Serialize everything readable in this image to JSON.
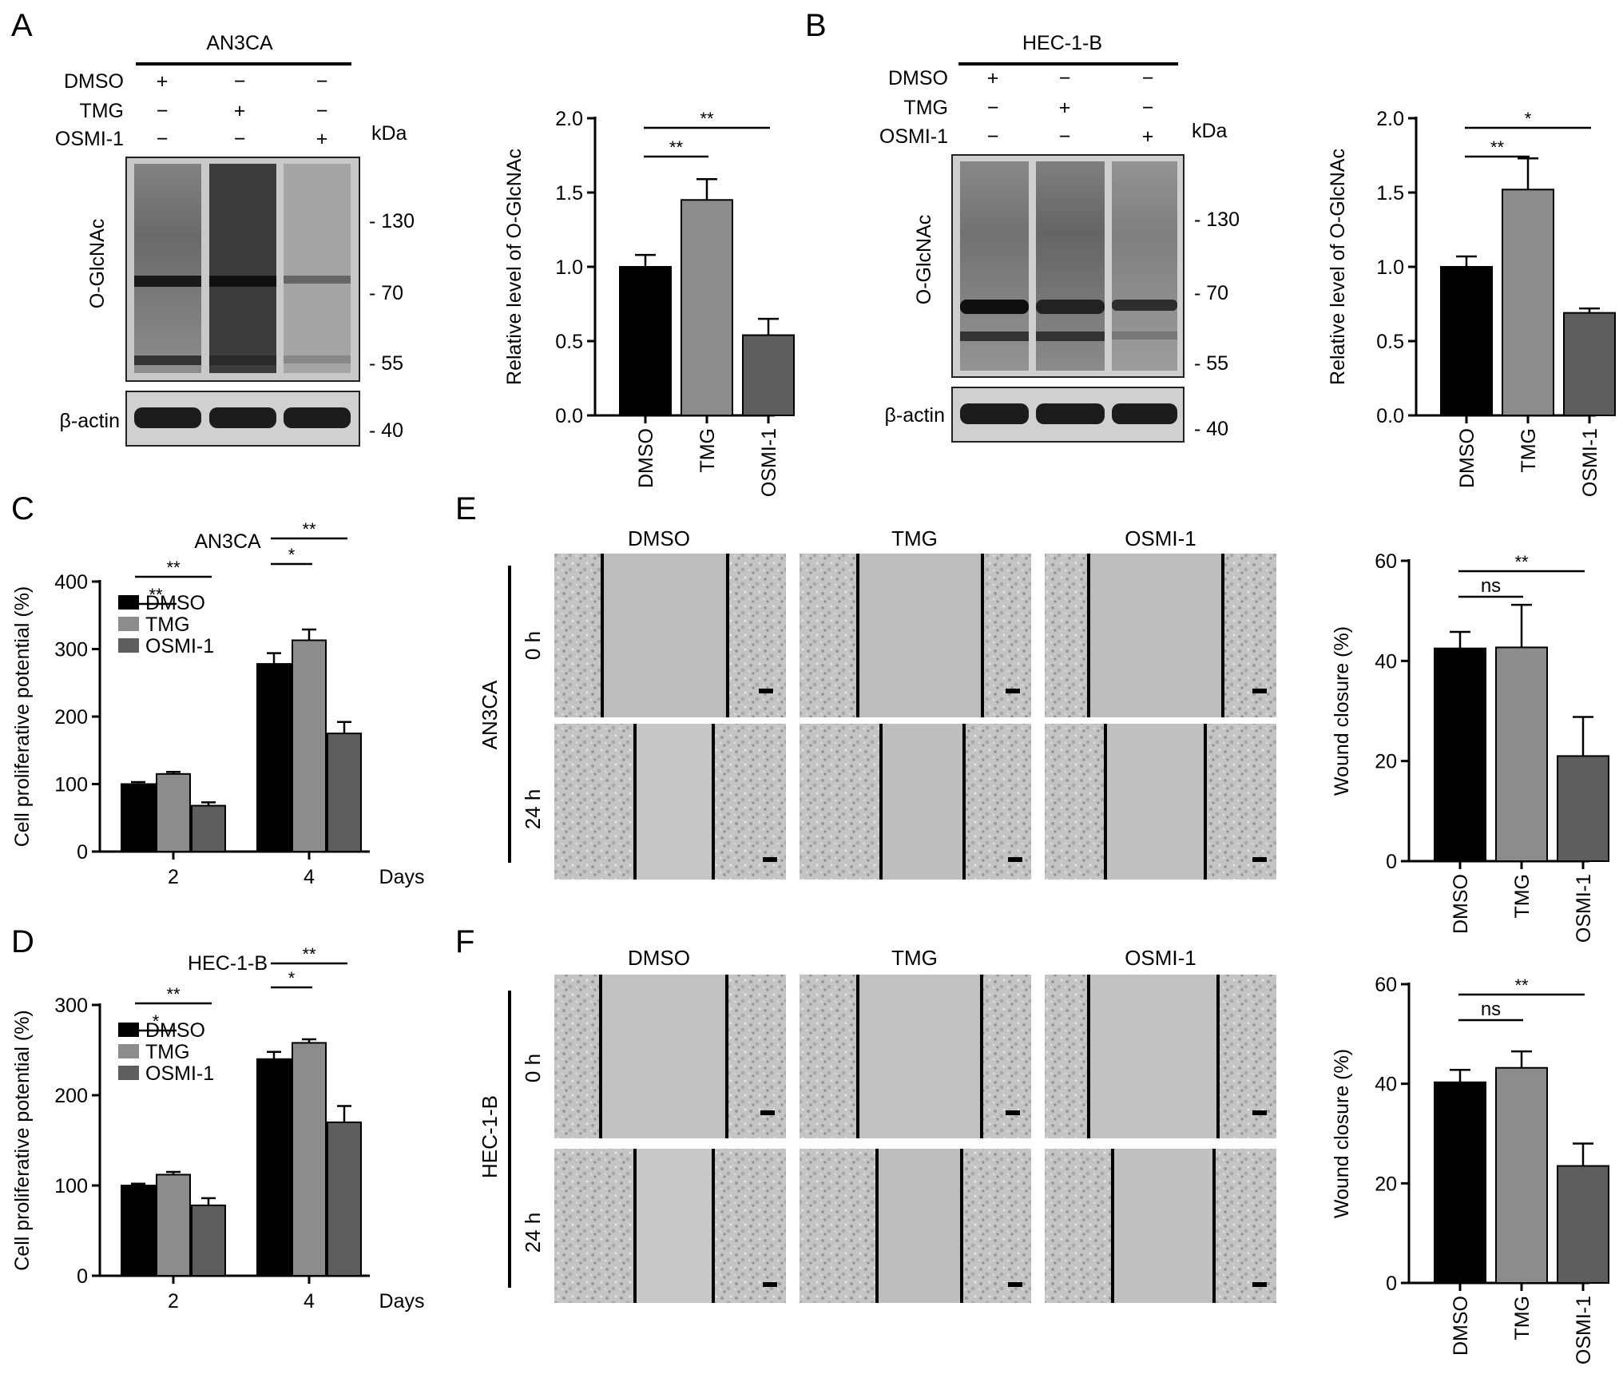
{
  "panels": {
    "A": {
      "letter": "A",
      "cell_line": "AN3CA",
      "conditions": [
        {
          "label": "DMSO",
          "marks": [
            "+",
            "−",
            "−"
          ]
        },
        {
          "label": "TMG",
          "marks": [
            "−",
            "+",
            "−"
          ]
        },
        {
          "label": "OSMI-1",
          "marks": [
            "−",
            "−",
            "+"
          ]
        }
      ],
      "kda_label": "kDa",
      "blot_label": "O-GlcNAc",
      "actin_label": "β-actin",
      "markers": [
        "- 130",
        "- 70",
        "- 55",
        "- 40"
      ]
    },
    "B": {
      "letter": "B",
      "cell_line": "HEC-1-B",
      "conditions": [
        {
          "label": "DMSO",
          "marks": [
            "+",
            "−",
            "−"
          ]
        },
        {
          "label": "TMG",
          "marks": [
            "−",
            "+",
            "−"
          ]
        },
        {
          "label": "OSMI-1",
          "marks": [
            "−",
            "−",
            "+"
          ]
        }
      ],
      "kda_label": "kDa",
      "blot_label": "O-GlcNAc",
      "actin_label": "β-actin",
      "markers": [
        "- 130",
        "- 70",
        "- 55",
        "- 40"
      ]
    },
    "C": {
      "letter": "C"
    },
    "D": {
      "letter": "D"
    },
    "E": {
      "letter": "E",
      "cell_line": "AN3CA",
      "columns": [
        "DMSO",
        "TMG",
        "OSMI-1"
      ],
      "rows": [
        "0 h",
        "24 h"
      ]
    },
    "F": {
      "letter": "F",
      "cell_line": "HEC-1-B",
      "columns": [
        "DMSO",
        "TMG",
        "OSMI-1"
      ],
      "rows": [
        "0 h",
        "24 h"
      ]
    }
  },
  "colors": {
    "dmso": "#000000",
    "tmg": "#8c8c8c",
    "osmi": "#5e5e5e"
  },
  "chart_data": [
    {
      "id": "A-bar",
      "type": "bar",
      "categories": [
        "DMSO",
        "TMG",
        "OSMI-1"
      ],
      "values": [
        1.0,
        1.45,
        0.54
      ],
      "errors": [
        0.08,
        0.14,
        0.11
      ],
      "ylabel": "Relative level of O-GlcNAc",
      "ylim": [
        0,
        2.0
      ],
      "yticks": [
        "0.0",
        "0.5",
        "1.0",
        "1.5",
        "2.0"
      ],
      "significance": [
        {
          "from": 0,
          "to": 1,
          "label": "**"
        },
        {
          "from": 0,
          "to": 2,
          "label": "**"
        }
      ]
    },
    {
      "id": "B-bar",
      "type": "bar",
      "categories": [
        "DMSO",
        "TMG",
        "OSMI-1"
      ],
      "values": [
        1.0,
        1.52,
        0.69
      ],
      "errors": [
        0.07,
        0.21,
        0.03
      ],
      "ylabel": "Relative level of O-GlcNAc",
      "ylim": [
        0,
        2.0
      ],
      "yticks": [
        "0.0",
        "0.5",
        "1.0",
        "1.5",
        "2.0"
      ],
      "significance": [
        {
          "from": 0,
          "to": 1,
          "label": "**"
        },
        {
          "from": 0,
          "to": 2,
          "label": "*"
        }
      ]
    },
    {
      "id": "C-bar",
      "type": "bar",
      "title": "AN3CA",
      "categories": [
        "2",
        "4"
      ],
      "xlabel": "Days",
      "ylabel": "Cell proliferative potential (%)",
      "ylim": [
        0,
        400
      ],
      "yticks": [
        "0",
        "100",
        "200",
        "300",
        "400"
      ],
      "series": [
        {
          "name": "DMSO",
          "values": [
            100,
            278
          ],
          "errors": [
            3,
            16
          ]
        },
        {
          "name": "TMG",
          "values": [
            115,
            313
          ],
          "errors": [
            3,
            16
          ]
        },
        {
          "name": "OSMI-1",
          "values": [
            68,
            175
          ],
          "errors": [
            5,
            17
          ]
        }
      ],
      "significance": [
        {
          "group": 0,
          "from": 0,
          "to": 1,
          "label": "**"
        },
        {
          "group": 0,
          "from": 0,
          "to": 2,
          "label": "**"
        },
        {
          "group": 1,
          "from": 0,
          "to": 1,
          "label": "*"
        },
        {
          "group": 1,
          "from": 0,
          "to": 2,
          "label": "**"
        }
      ]
    },
    {
      "id": "D-bar",
      "type": "bar",
      "title": "HEC-1-B",
      "categories": [
        "2",
        "4"
      ],
      "xlabel": "Days",
      "ylabel": "Cell proliferative potential (%)",
      "ylim": [
        0,
        300
      ],
      "yticks": [
        "0",
        "100",
        "200",
        "300"
      ],
      "series": [
        {
          "name": "DMSO",
          "values": [
            100,
            240
          ],
          "errors": [
            2,
            8
          ]
        },
        {
          "name": "TMG",
          "values": [
            112,
            258
          ],
          "errors": [
            3,
            4
          ]
        },
        {
          "name": "OSMI-1",
          "values": [
            78,
            170
          ],
          "errors": [
            8,
            18
          ]
        }
      ],
      "significance": [
        {
          "group": 0,
          "from": 0,
          "to": 1,
          "label": "*"
        },
        {
          "group": 0,
          "from": 0,
          "to": 2,
          "label": "**"
        },
        {
          "group": 1,
          "from": 0,
          "to": 1,
          "label": "*"
        },
        {
          "group": 1,
          "from": 0,
          "to": 2,
          "label": "**"
        }
      ]
    },
    {
      "id": "E-bar",
      "type": "bar",
      "categories": [
        "DMSO",
        "TMG",
        "OSMI-1"
      ],
      "values": [
        42.5,
        42.7,
        21.0
      ],
      "errors": [
        3.3,
        8.5,
        7.8
      ],
      "ylabel": "Wound closure (%)",
      "ylim": [
        0,
        60
      ],
      "yticks": [
        "0",
        "20",
        "40",
        "60"
      ],
      "significance": [
        {
          "from": 0,
          "to": 1,
          "label": "ns"
        },
        {
          "from": 0,
          "to": 2,
          "label": "**"
        }
      ]
    },
    {
      "id": "F-bar",
      "type": "bar",
      "categories": [
        "DMSO",
        "TMG",
        "OSMI-1"
      ],
      "values": [
        40.3,
        43.2,
        23.5
      ],
      "errors": [
        2.5,
        3.3,
        4.5
      ],
      "ylabel": "Wound closure (%)",
      "ylim": [
        0,
        60
      ],
      "yticks": [
        "0",
        "20",
        "40",
        "60"
      ],
      "significance": [
        {
          "from": 0,
          "to": 1,
          "label": "ns"
        },
        {
          "from": 0,
          "to": 2,
          "label": "**"
        }
      ]
    }
  ]
}
